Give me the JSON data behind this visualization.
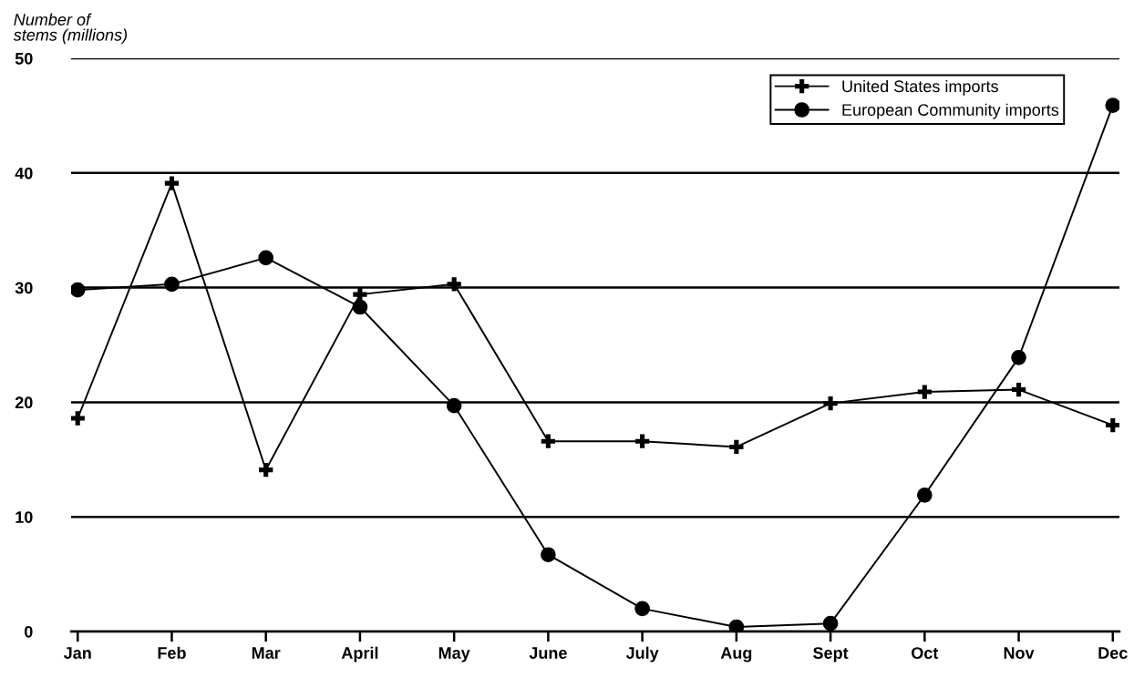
{
  "chart_data": {
    "type": "line",
    "ylabel": "Number of\nstems (millions)",
    "categories": [
      "Jan",
      "Feb",
      "Mar",
      "April",
      "May",
      "June",
      "July",
      "Aug",
      "Sept",
      "Oct",
      "Nov",
      "Dec"
    ],
    "series": [
      {
        "name": "United States imports",
        "color": "#000000",
        "marker": "cross",
        "values": [
          18.6,
          39.1,
          14.1,
          29.4,
          30.3,
          16.6,
          16.6,
          16.1,
          19.9,
          20.9,
          21.1,
          18.0
        ]
      },
      {
        "name": "European Community imports",
        "color": "#000000",
        "marker": "circle",
        "values": [
          29.8,
          30.3,
          32.6,
          28.3,
          19.7,
          6.7,
          2.0,
          0.4,
          0.7,
          11.9,
          23.9,
          45.9
        ]
      }
    ],
    "ylim": [
      0,
      50
    ],
    "yticks": [
      0,
      10,
      20,
      30,
      40,
      50
    ],
    "grid": "y",
    "legend": "top right",
    "line_style": "solid"
  }
}
